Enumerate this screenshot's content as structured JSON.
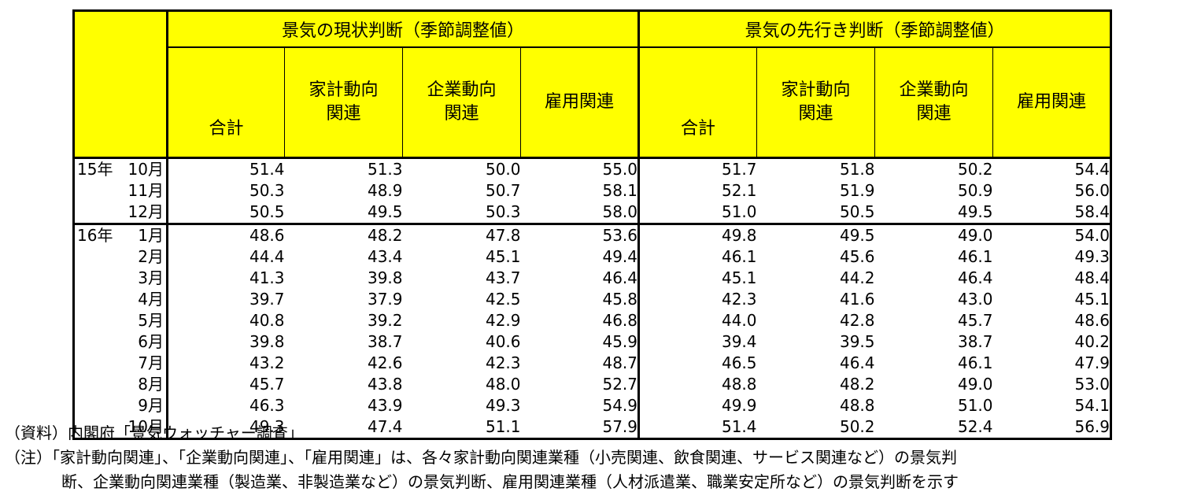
{
  "header": {
    "group_current": "景気の現状判断（季節調整値）",
    "group_future": "景気の先行き判断（季節調整値）",
    "col_total": "合計",
    "col_household_l1": "家計動向",
    "col_household_l2": "関連",
    "col_corporate_l1": "企業動向",
    "col_corporate_l2": "関連",
    "col_employment": "雇用関連"
  },
  "rows": [
    {
      "year": "15年",
      "month": "10月",
      "values": [
        "51.4",
        "51.3",
        "50.0",
        "55.0",
        "51.7",
        "51.8",
        "50.2",
        "54.4"
      ]
    },
    {
      "year": "",
      "month": "11月",
      "values": [
        "50.3",
        "48.9",
        "50.7",
        "58.1",
        "52.1",
        "51.9",
        "50.9",
        "56.0"
      ]
    },
    {
      "year": "",
      "month": "12月",
      "values": [
        "50.5",
        "49.5",
        "50.3",
        "58.0",
        "51.0",
        "50.5",
        "49.5",
        "58.4"
      ]
    },
    {
      "year": "16年",
      "month": "1月",
      "values": [
        "48.6",
        "48.2",
        "47.8",
        "53.6",
        "49.8",
        "49.5",
        "49.0",
        "54.0"
      ]
    },
    {
      "year": "",
      "month": "2月",
      "values": [
        "44.4",
        "43.4",
        "45.1",
        "49.4",
        "46.1",
        "45.6",
        "46.1",
        "49.3"
      ]
    },
    {
      "year": "",
      "month": "3月",
      "values": [
        "41.3",
        "39.8",
        "43.7",
        "46.4",
        "45.1",
        "44.2",
        "46.4",
        "48.4"
      ]
    },
    {
      "year": "",
      "month": "4月",
      "values": [
        "39.7",
        "37.9",
        "42.5",
        "45.8",
        "42.3",
        "41.6",
        "43.0",
        "45.1"
      ]
    },
    {
      "year": "",
      "month": "5月",
      "values": [
        "40.8",
        "39.2",
        "42.9",
        "46.8",
        "44.0",
        "42.8",
        "45.7",
        "48.6"
      ]
    },
    {
      "year": "",
      "month": "6月",
      "values": [
        "39.8",
        "38.7",
        "40.6",
        "45.9",
        "39.4",
        "39.5",
        "38.7",
        "40.2"
      ]
    },
    {
      "year": "",
      "month": "7月",
      "values": [
        "43.2",
        "42.6",
        "42.3",
        "48.7",
        "46.5",
        "46.4",
        "46.1",
        "47.9"
      ]
    },
    {
      "year": "",
      "month": "8月",
      "values": [
        "45.7",
        "43.8",
        "48.0",
        "52.7",
        "48.8",
        "48.2",
        "49.0",
        "53.0"
      ]
    },
    {
      "year": "",
      "month": "9月",
      "values": [
        "46.3",
        "43.9",
        "49.3",
        "54.9",
        "49.9",
        "48.8",
        "51.0",
        "54.1"
      ]
    },
    {
      "year": "",
      "month": "10月",
      "values": [
        "49.3",
        "47.4",
        "51.1",
        "57.9",
        "51.4",
        "50.2",
        "52.4",
        "56.9"
      ]
    }
  ],
  "notes": {
    "source": "（資料）内閣府「景気ウォッチャー調査」",
    "note_line1": "（注）「家計動向関連」、「企業動向関連」、「雇用関連」は、各々家計動向関連業種（小売関連、飲食関連、サービス関連など）の景気判",
    "note_line2": "断、企業動向関連業種（製造業、非製造業など）の景気判断、雇用関連業種（人材派遣業、職業安定所など）の景気判断を示す"
  },
  "colors": {
    "header_bg": "#ffff00",
    "border": "#000000"
  }
}
